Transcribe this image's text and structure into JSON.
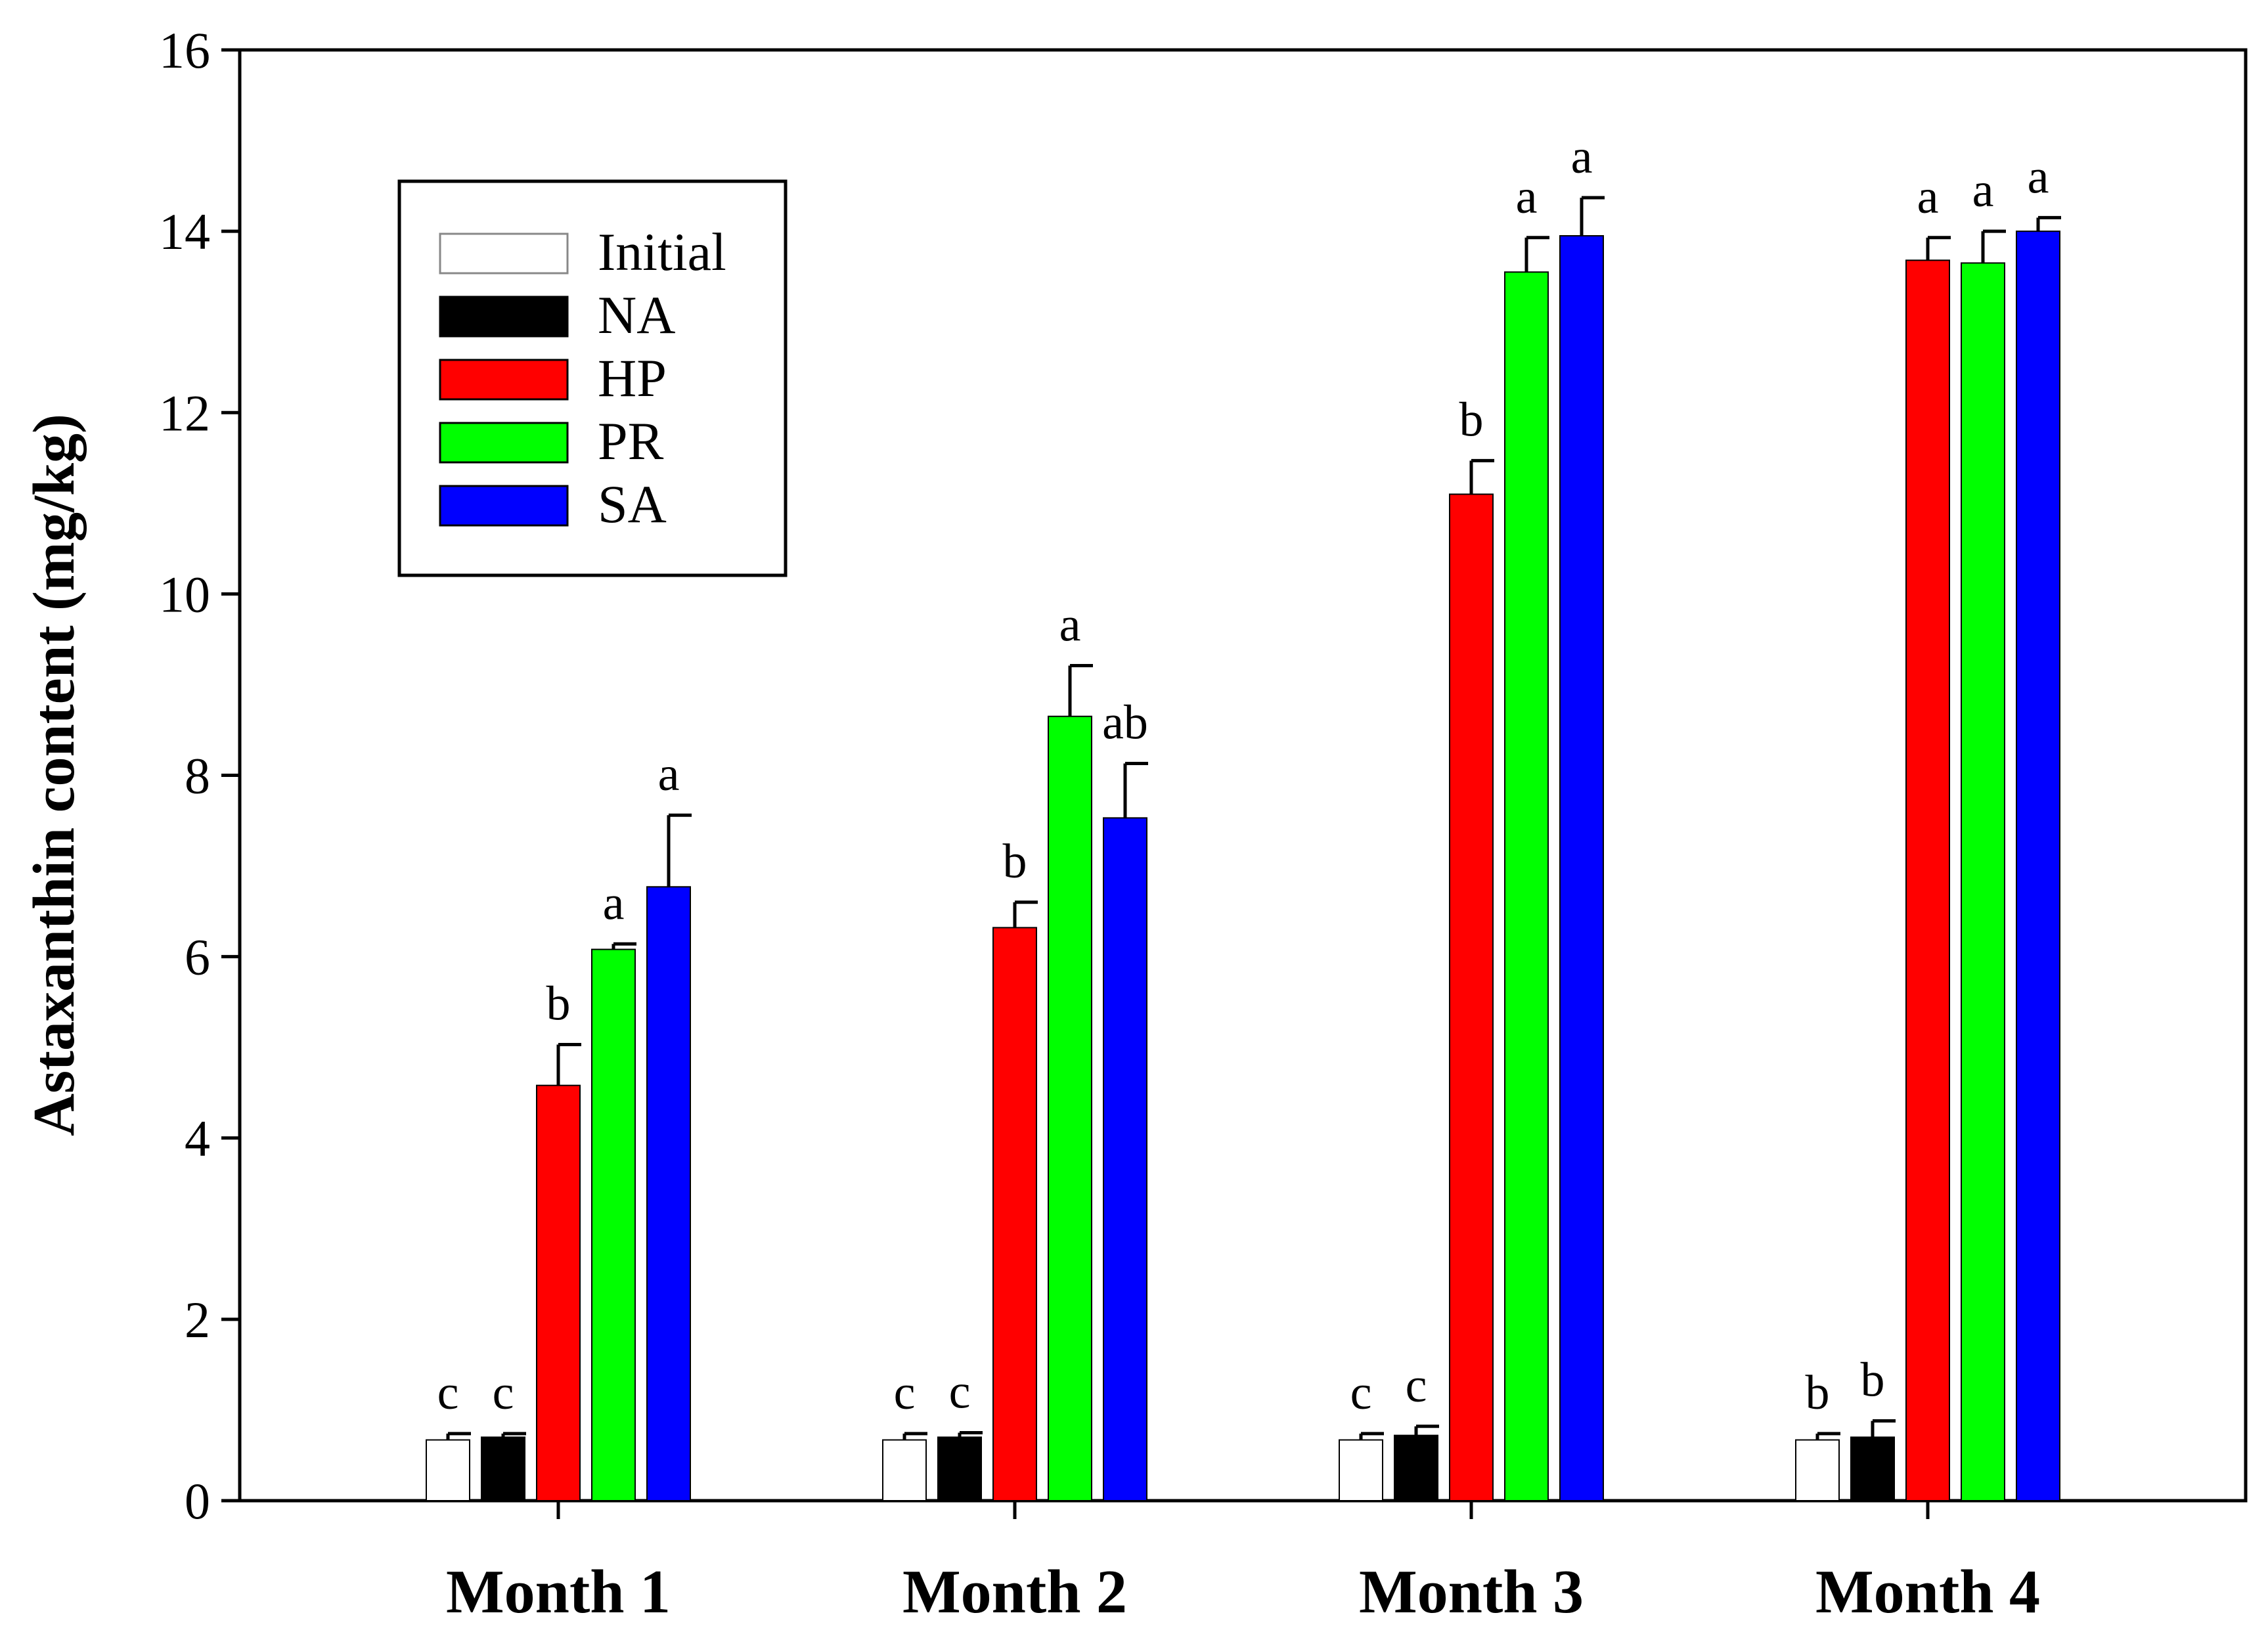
{
  "chart_data": {
    "type": "bar",
    "title": "",
    "xlabel": "",
    "ylabel": "Astaxanthin content (mg/kg)",
    "ylim": [
      0,
      16
    ],
    "yticks": [
      0,
      2,
      4,
      6,
      8,
      10,
      12,
      14,
      16
    ],
    "legend_position": "top-left",
    "categories": [
      "Month 1",
      "Month 2",
      "Month 3",
      "Month 4"
    ],
    "series": [
      {
        "name": "Initial",
        "color": "#ffffff",
        "values": [
          0.67,
          0.67,
          0.67,
          0.67
        ],
        "errors": [
          0.07,
          0.07,
          0.07,
          0.07
        ],
        "letters": [
          "c",
          "c",
          "c",
          "b"
        ]
      },
      {
        "name": "NA",
        "color": "#000000",
        "values": [
          0.7,
          0.7,
          0.72,
          0.7
        ],
        "errors": [
          0.04,
          0.05,
          0.1,
          0.18
        ],
        "letters": [
          "c",
          "c",
          "c",
          "b"
        ]
      },
      {
        "name": "HP",
        "color": "#ff0000",
        "values": [
          4.58,
          6.32,
          11.1,
          13.68
        ],
        "errors": [
          0.45,
          0.28,
          0.37,
          0.25
        ],
        "letters": [
          "b",
          "b",
          "b",
          "a"
        ]
      },
      {
        "name": "PR",
        "color": "#00ff00",
        "values": [
          6.08,
          8.65,
          13.55,
          13.65
        ],
        "errors": [
          0.06,
          0.56,
          0.38,
          0.35
        ],
        "letters": [
          "a",
          "a",
          "a",
          "a"
        ]
      },
      {
        "name": "SA",
        "color": "#0000ff",
        "values": [
          6.77,
          7.53,
          13.95,
          14.0
        ],
        "errors": [
          0.79,
          0.6,
          0.42,
          0.15
        ],
        "letters": [
          "a",
          "ab",
          "a",
          "a"
        ]
      }
    ]
  }
}
